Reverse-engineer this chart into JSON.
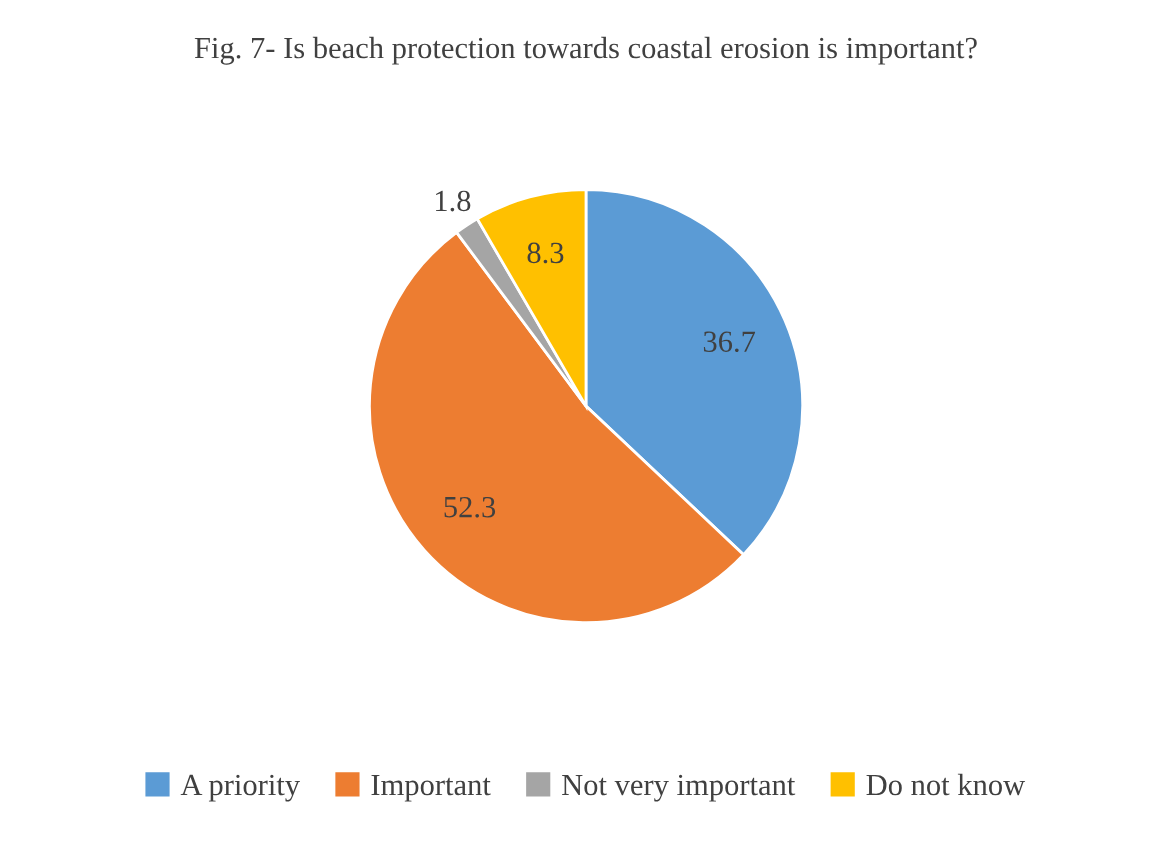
{
  "chart_data": {
    "type": "pie",
    "title": "Fig. 7- Is beach protection towards coastal erosion is important?",
    "categories": [
      "A priority",
      "Important",
      "Not very important",
      "Do not know"
    ],
    "values": [
      36.7,
      52.3,
      1.8,
      8.3
    ],
    "colors": [
      "#5b9bd5",
      "#ed7d31",
      "#a5a5a5",
      "#ffc000"
    ],
    "data_labels": true,
    "legend": "bottom"
  }
}
